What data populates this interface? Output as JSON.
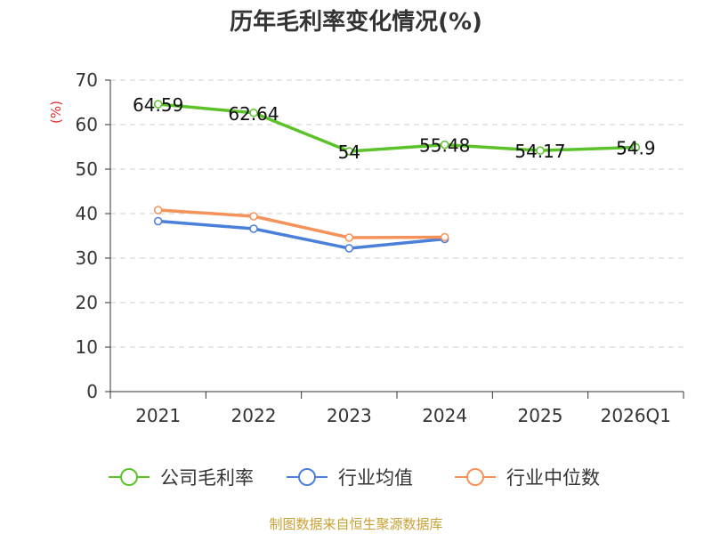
{
  "chart_data": {
    "type": "line",
    "title": "历年毛利率变化情况(%)",
    "ylabel": "(%)",
    "xlabel": "",
    "categories": [
      "2021",
      "2022",
      "2023",
      "2024",
      "2025",
      "2026Q1"
    ],
    "ylim": [
      0,
      70
    ],
    "yticks": [
      0,
      10,
      20,
      30,
      40,
      50,
      60,
      70
    ],
    "grid": true,
    "legend_position": "bottom",
    "series": [
      {
        "name": "公司毛利率",
        "color": "#5cc22a",
        "values": [
          64.59,
          62.64,
          54,
          55.48,
          54.17,
          54.9
        ],
        "labels": [
          "64.59",
          "62.64",
          "54",
          "55.48",
          "54.17",
          "54.9"
        ],
        "show_labels": true
      },
      {
        "name": "行业均值",
        "color": "#4a80d9",
        "values": [
          38.3,
          36.6,
          32.2,
          34.3,
          null,
          null
        ],
        "show_labels": false
      },
      {
        "name": "行业中位数",
        "color": "#f5925a",
        "values": [
          40.8,
          39.4,
          34.6,
          34.7,
          null,
          null
        ],
        "show_labels": false
      }
    ]
  },
  "footer": {
    "source": "制图数据来自恒生聚源数据库"
  }
}
